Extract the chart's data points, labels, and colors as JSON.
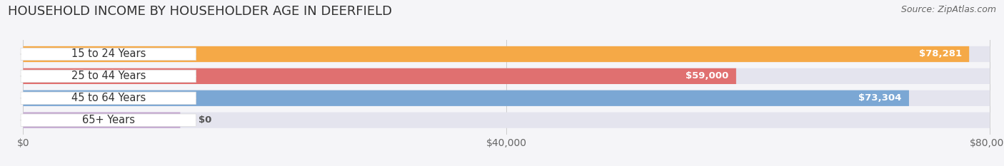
{
  "title": "HOUSEHOLD INCOME BY HOUSEHOLDER AGE IN DEERFIELD",
  "source": "Source: ZipAtlas.com",
  "categories": [
    "15 to 24 Years",
    "25 to 44 Years",
    "45 to 64 Years",
    "65+ Years"
  ],
  "values": [
    78281,
    59000,
    73304,
    0
  ],
  "bar_colors": [
    "#F5A947",
    "#E07070",
    "#7BA7D4",
    "#C4A8D0"
  ],
  "bar_bg_color": "#E4E4EE",
  "value_labels": [
    "$78,281",
    "$59,000",
    "$73,304",
    "$0"
  ],
  "xlim_data": [
    0,
    80000
  ],
  "xticks": [
    0,
    40000,
    80000
  ],
  "xticklabels": [
    "$0",
    "$40,000",
    "$80,000"
  ],
  "title_fontsize": 13,
  "label_fontsize": 10.5,
  "source_fontsize": 9,
  "value_fontsize": 9.5,
  "figsize": [
    14.06,
    2.33
  ],
  "dpi": 100,
  "bg_color": "#F5F5F8"
}
